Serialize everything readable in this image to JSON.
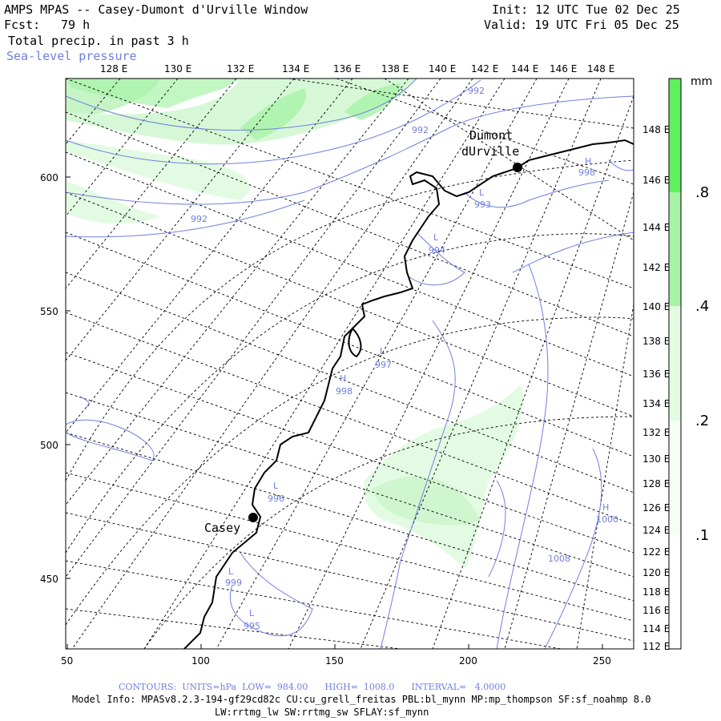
{
  "header": {
    "title": "AMPS MPAS -- Casey-Dumont d'Urville Window",
    "fcst_label": "Fcst:",
    "fcst_value": "79 h",
    "field1": "Total precip. in past 3 h",
    "field2": "Sea-level pressure",
    "init": "Init: 12 UTC Tue 02 Dec 25",
    "valid": "Valid: 19 UTC Fri 05 Dec 25"
  },
  "axes": {
    "top_lon": [
      "128 E",
      "130 E",
      "132 E",
      "134 E",
      "136 E",
      "138 E",
      "140 E",
      "142 E",
      "144 E",
      "146 E",
      "148 E"
    ],
    "right_lon": [
      "148 E",
      "146 E",
      "144 E",
      "142 E",
      "140 E",
      "138 E",
      "136 E",
      "134 E",
      "132 E",
      "130 E",
      "128 E",
      "126 E",
      "124 E",
      "122 E",
      "120 E",
      "118 E",
      "116 E",
      "114 E",
      "112 E"
    ],
    "left_ticks": [
      "600",
      "550",
      "500",
      "450"
    ],
    "bottom_ticks": [
      "50",
      "100",
      "150",
      "200",
      "250"
    ]
  },
  "colorbar": {
    "unit": "mm",
    "labels": [
      ".8",
      ".4",
      ".2",
      ".1"
    ],
    "colors": [
      "#5ef05e",
      "#a8f2a8",
      "#e2fbe2",
      "#ffffff"
    ]
  },
  "stations": [
    {
      "name_line1": "Dumont",
      "name_line2": "dUrville"
    },
    {
      "name_line1": "Casey"
    }
  ],
  "contour_labels": [
    "992",
    "992",
    "992",
    "H",
    "998",
    "L",
    "993",
    "L",
    "994",
    "L",
    "997",
    "H",
    "998",
    "L",
    "996",
    "H",
    "1000",
    "1008",
    "L",
    "999",
    "L",
    "995"
  ],
  "footer": {
    "contours": "CONTOURS:  UNITS=hPa  LOW=  984.00      HIGH=  1008.0      INTERVAL=   4.0000",
    "model_info": "Model Info: MPASv8.2.3-194-gf29cd82c CU:cu_grell_freitas PBL:bl_mynn MP:mp_thompson SF:sf_noahmp 8.0",
    "schemes": "LW:rrtmg_lw SW:rrtmg_sw SFLAY:sf_mynn"
  }
}
